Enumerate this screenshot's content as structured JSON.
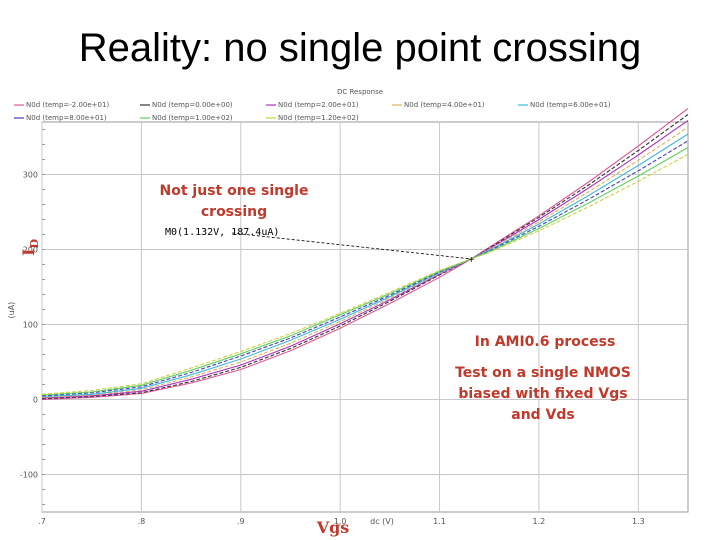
{
  "slide": {
    "title": "Reality: no single point crossing"
  },
  "chart_data": {
    "type": "line",
    "title": "DC Response",
    "xlabel_unit": "dc (V)",
    "xlabel_overlay": "Vgs",
    "ylabel_unit": "(uA)",
    "ylabel_overlay": "I",
    "ylabel_overlay_sub": "D",
    "xlim": [
      0.7,
      1.35
    ],
    "ylim": [
      -150,
      370
    ],
    "xticks": [
      0.7,
      0.8,
      0.9,
      1.0,
      1.1,
      1.2,
      1.3
    ],
    "xtick_labels": [
      ".7",
      ".8",
      ".9",
      "1.0",
      "1.1",
      "1.2",
      "1.3"
    ],
    "yticks": [
      -100,
      0,
      100,
      200,
      300
    ],
    "ytick_labels": [
      "-100",
      "0",
      "100",
      "200",
      "300"
    ],
    "grid": true,
    "legend_position": "top",
    "x": [
      0.7,
      0.75,
      0.8,
      0.85,
      0.9,
      0.95,
      1.0,
      1.05,
      1.1,
      1.132,
      1.15,
      1.2,
      1.25,
      1.3,
      1.35
    ],
    "series": [
      {
        "name": "N0d (temp=-2.00e+01)",
        "color": "#e0579a",
        "values": [
          0,
          3,
          8,
          22,
          40,
          65,
          95,
          128,
          163,
          187.4,
          203,
          245,
          290,
          338,
          388
        ]
      },
      {
        "name": "N0d (temp=0.00e+00)",
        "color": "#333333",
        "values": [
          1,
          4,
          9,
          24,
          43,
          68,
          98,
          131,
          166,
          187.4,
          202,
          243,
          286,
          332,
          380
        ]
      },
      {
        "name": "N0d (temp=2.00e+01)",
        "color": "#b030c0",
        "values": [
          2,
          5,
          11,
          27,
          46,
          71,
          101,
          133,
          167,
          187.4,
          201,
          240,
          282,
          326,
          372
        ]
      },
      {
        "name": "N0d (temp=4.00e+01)",
        "color": "#e0b060",
        "values": [
          3,
          6,
          13,
          30,
          50,
          75,
          104,
          135,
          168,
          187.4,
          200,
          237,
          277,
          319,
          363
        ]
      },
      {
        "name": "N0d (temp=6.00e+01)",
        "color": "#40b8d8",
        "values": [
          4,
          7,
          15,
          33,
          54,
          79,
          107,
          137,
          169,
          187.4,
          199,
          234,
          272,
          312,
          354
        ]
      },
      {
        "name": "N0d (temp=8.00e+01)",
        "color": "#4040c0",
        "values": [
          5,
          9,
          17,
          36,
          58,
          82,
          110,
          139,
          170,
          187.4,
          198,
          231,
          267,
          305,
          345
        ]
      },
      {
        "name": "N0d (temp=1.00e+02)",
        "color": "#60d060",
        "values": [
          6,
          10,
          19,
          39,
          61,
          85,
          113,
          141,
          171,
          187.4,
          197,
          228,
          262,
          298,
          336
        ]
      },
      {
        "name": "N0d (temp=1.20e+02)",
        "color": "#d0d040",
        "values": [
          7,
          12,
          21,
          42,
          64,
          88,
          115,
          143,
          172,
          187.4,
          196,
          225,
          257,
          291,
          327
        ]
      }
    ],
    "marker": {
      "label": "M0(1.132V, 187.4uA)",
      "x": 1.132,
      "y": 187.4
    },
    "annotations": {
      "crossing": [
        "Not just one single",
        "crossing"
      ],
      "process": "In AMI0.6 process",
      "test": [
        "Test on a single NMOS",
        "biased with fixed Vgs",
        "and Vds"
      ]
    }
  }
}
